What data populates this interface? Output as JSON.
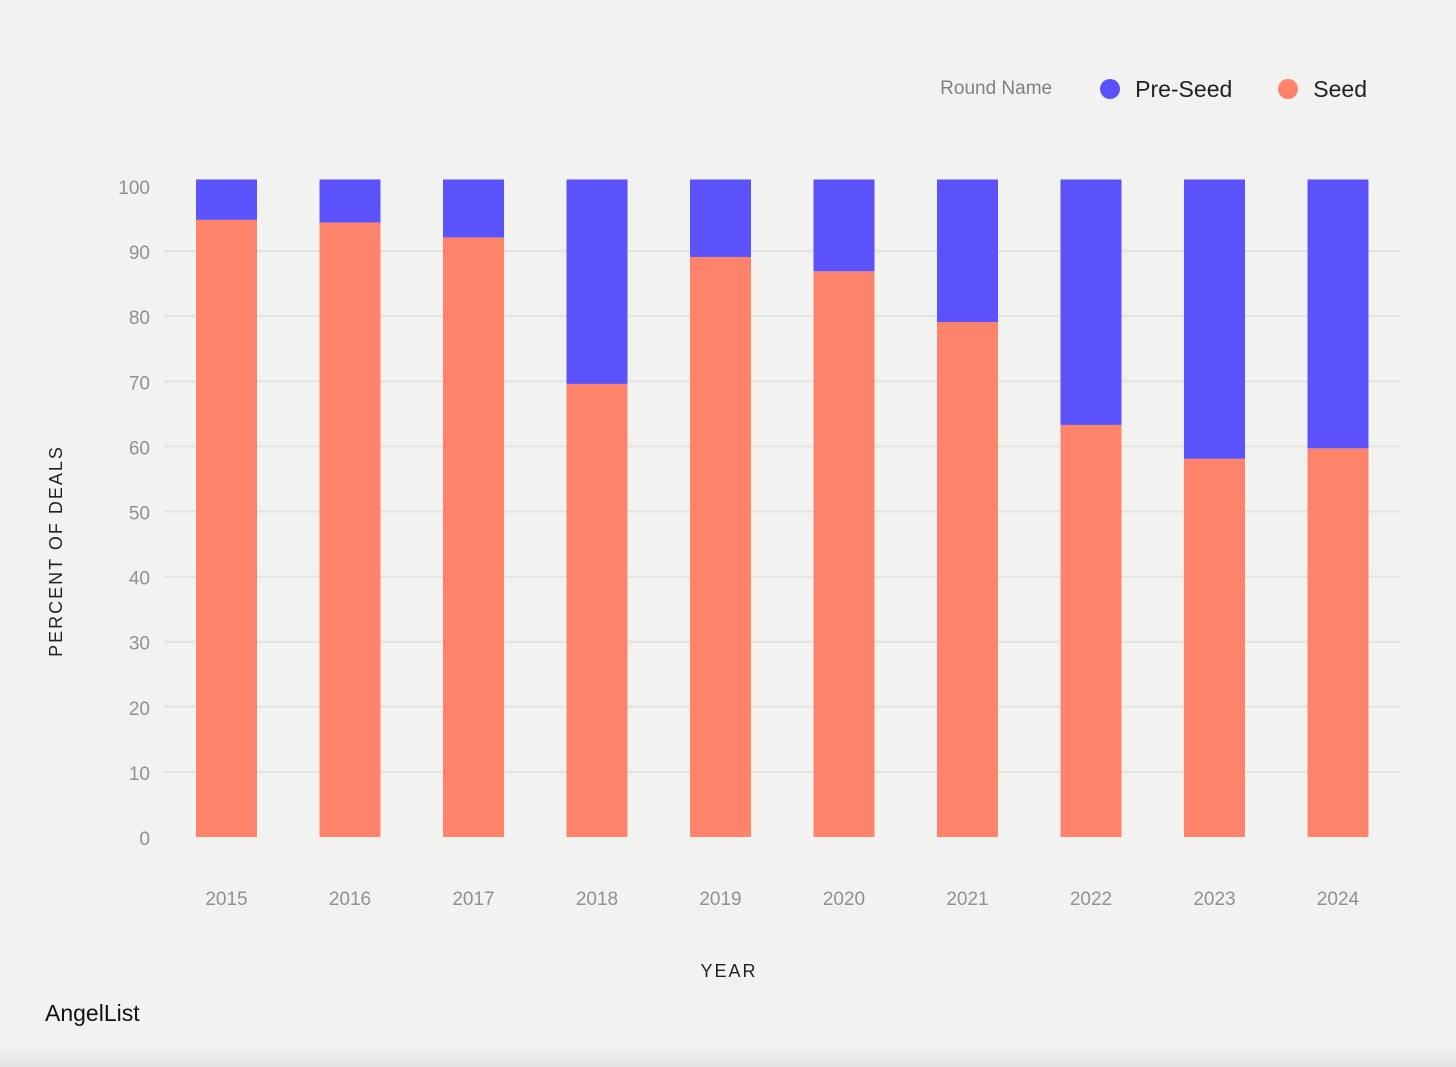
{
  "legend": {
    "title": "Round Name",
    "items": [
      {
        "label": "Pre-Seed",
        "color": "#5b52fc"
      },
      {
        "label": "Seed",
        "color": "#fd846a"
      }
    ]
  },
  "brand": "AngelList",
  "chart_data": {
    "type": "bar",
    "stacked": true,
    "categories": [
      "2015",
      "2016",
      "2017",
      "2018",
      "2019",
      "2020",
      "2021",
      "2022",
      "2023",
      "2024"
    ],
    "series": [
      {
        "name": "Seed",
        "color": "#fd846a",
        "values": [
          94.8,
          94.4,
          92.1,
          69.6,
          89.1,
          86.9,
          79.1,
          63.3,
          58.1,
          59.7
        ]
      },
      {
        "name": "Pre-Seed",
        "color": "#5b52fc",
        "values": [
          6.2,
          6.6,
          8.9,
          31.4,
          11.9,
          14.1,
          21.9,
          37.7,
          42.9,
          41.3
        ]
      }
    ],
    "xlabel": "YEAR",
    "ylabel": "PERCENT OF DEALS",
    "ylim": [
      0,
      100
    ],
    "yticks": [
      0,
      10,
      20,
      30,
      40,
      50,
      60,
      70,
      80,
      90,
      100
    ],
    "grid": true,
    "legend_position": "top-right"
  }
}
